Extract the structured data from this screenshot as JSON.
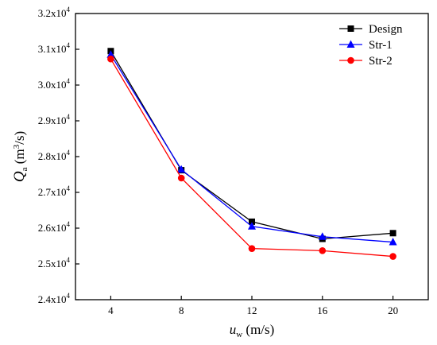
{
  "chart_data": {
    "type": "line",
    "x": [
      4,
      8,
      12,
      16,
      20
    ],
    "xlim": [
      2,
      22
    ],
    "ylim": [
      24000,
      32000
    ],
    "x_ticks": [
      "4",
      "8",
      "12",
      "16",
      "20"
    ],
    "y_ticks": [
      {
        "value": 24000,
        "mant": "2.4x10",
        "exp": "4"
      },
      {
        "value": 25000,
        "mant": "2.5x10",
        "exp": "4"
      },
      {
        "value": 26000,
        "mant": "2.6x10",
        "exp": "4"
      },
      {
        "value": 27000,
        "mant": "2.7x10",
        "exp": "4"
      },
      {
        "value": 28000,
        "mant": "2.8x10",
        "exp": "4"
      },
      {
        "value": 29000,
        "mant": "2.9x10",
        "exp": "4"
      },
      {
        "value": 30000,
        "mant": "3.0x10",
        "exp": "4"
      },
      {
        "value": 31000,
        "mant": "3.1x10",
        "exp": "4"
      },
      {
        "value": 32000,
        "mant": "3.2x10",
        "exp": "4"
      }
    ],
    "xlabel": {
      "main": "u",
      "sub": "w",
      "unit": " (m/s)"
    },
    "ylabel": {
      "main": "Q",
      "sub": "a",
      "unit_open": " (m",
      "unit_sup": "3",
      "unit_close": "/s)"
    },
    "series": [
      {
        "name": "Design",
        "color": "#000000",
        "marker": "square",
        "values": [
          30950,
          27620,
          26180,
          25700,
          25860
        ]
      },
      {
        "name": "Str-1",
        "color": "#0000ff",
        "marker": "triangle",
        "values": [
          30850,
          27640,
          26050,
          25760,
          25610
        ]
      },
      {
        "name": "Str-2",
        "color": "#ff0000",
        "marker": "circle",
        "values": [
          30730,
          27400,
          25430,
          25370,
          25210
        ]
      }
    ],
    "legend_position": "top-right",
    "grid": false
  }
}
